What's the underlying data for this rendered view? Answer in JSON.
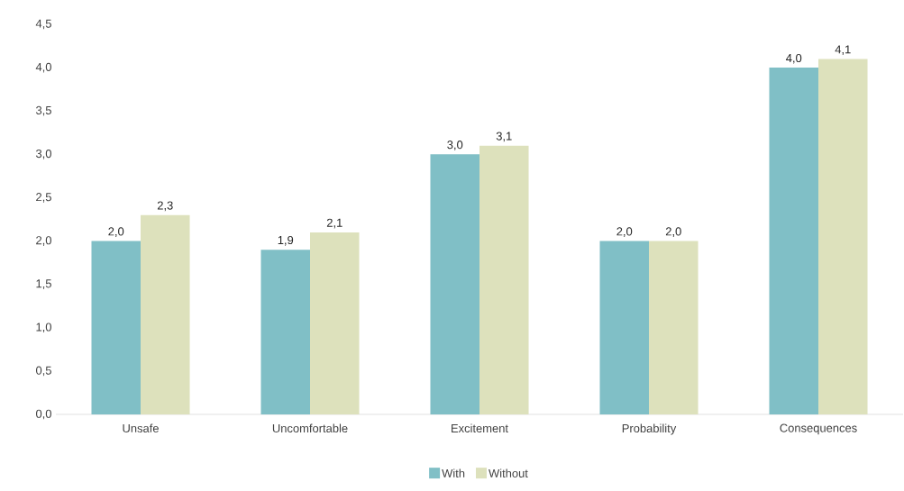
{
  "chart_data": {
    "type": "bar",
    "categories": [
      "Unsafe",
      "Uncomfortable",
      "Excitement",
      "Probability",
      "Consequences"
    ],
    "series": [
      {
        "name": "With",
        "color": "#80bfc6",
        "values": [
          2.0,
          1.9,
          3.0,
          2.0,
          4.0
        ],
        "value_labels": [
          "2,0",
          "1,9",
          "3,0",
          "2,0",
          "4,0"
        ]
      },
      {
        "name": "Without",
        "color": "#dde1bc",
        "values": [
          2.3,
          2.1,
          3.1,
          2.0,
          4.1
        ],
        "value_labels": [
          "2,3",
          "2,1",
          "3,1",
          "2,0",
          "4,1"
        ]
      }
    ],
    "ylim": [
      0,
      4.5
    ],
    "yticks": [
      {
        "value": 0,
        "label": "0,0"
      },
      {
        "value": 0.5,
        "label": "0,5"
      },
      {
        "value": 1,
        "label": "1,0"
      },
      {
        "value": 1.5,
        "label": "1,5"
      },
      {
        "value": 2,
        "label": "2,0"
      },
      {
        "value": 2.5,
        "label": "2,5"
      },
      {
        "value": 3,
        "label": "3,0"
      },
      {
        "value": 3.5,
        "label": "3,5"
      },
      {
        "value": 4,
        "label": "4,0"
      },
      {
        "value": 4.5,
        "label": "4,5"
      }
    ],
    "legend": "bottom"
  }
}
